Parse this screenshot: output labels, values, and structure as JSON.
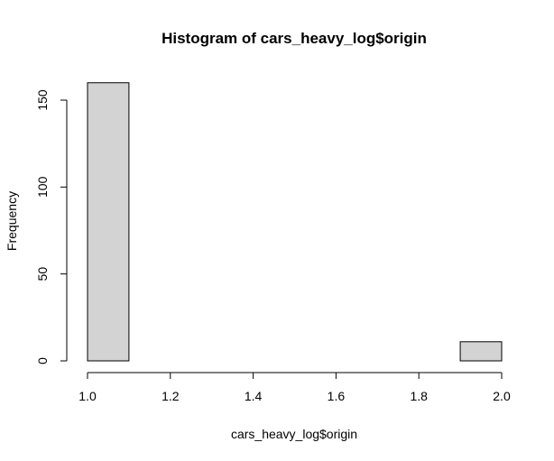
{
  "chart_data": {
    "type": "bar",
    "title": "Histogram of cars_heavy_log$origin",
    "xlabel": "cars_heavy_log$origin",
    "ylabel": "Frequency",
    "bins": [
      {
        "start": 1.0,
        "end": 1.1,
        "count": 160
      },
      {
        "start": 1.1,
        "end": 1.2,
        "count": 0
      },
      {
        "start": 1.2,
        "end": 1.3,
        "count": 0
      },
      {
        "start": 1.3,
        "end": 1.4,
        "count": 0
      },
      {
        "start": 1.4,
        "end": 1.5,
        "count": 0
      },
      {
        "start": 1.5,
        "end": 1.6,
        "count": 0
      },
      {
        "start": 1.6,
        "end": 1.7,
        "count": 0
      },
      {
        "start": 1.7,
        "end": 1.8,
        "count": 0
      },
      {
        "start": 1.8,
        "end": 1.9,
        "count": 0
      },
      {
        "start": 1.9,
        "end": 2.0,
        "count": 11
      }
    ],
    "xlim": [
      1.0,
      2.0
    ],
    "ylim": [
      0,
      165
    ],
    "x_ticks": [
      "1.0",
      "1.2",
      "1.4",
      "1.6",
      "1.8",
      "2.0"
    ],
    "y_ticks": [
      "0",
      "50",
      "100",
      "150"
    ],
    "bar_fill": "#d3d3d3",
    "bar_stroke": "#000000",
    "grid": false,
    "legend": "none"
  }
}
